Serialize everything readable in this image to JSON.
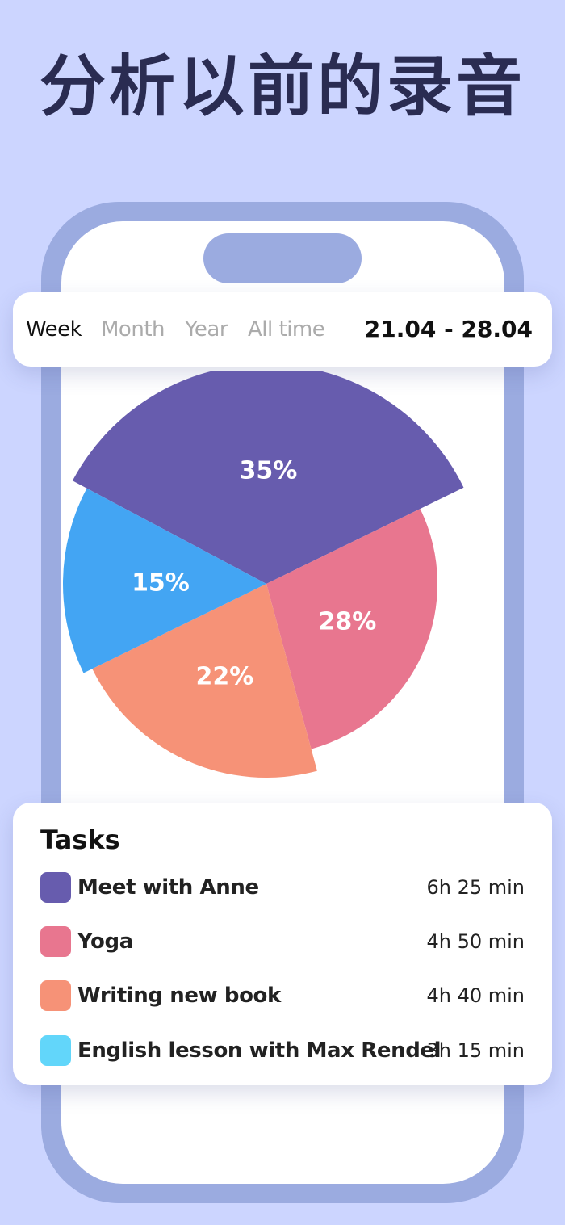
{
  "headline": "分析以前的录音",
  "period": {
    "tabs": [
      {
        "label": "Week",
        "active": true
      },
      {
        "label": "Month",
        "active": false
      },
      {
        "label": "Year",
        "active": false
      },
      {
        "label": "All time",
        "active": false
      }
    ],
    "date_range": "21.04 - 28.04"
  },
  "chart_data": {
    "type": "pie",
    "slices": [
      {
        "label": "35%",
        "value": 35,
        "color": "#675CAE"
      },
      {
        "label": "28%",
        "value": 28,
        "color": "#E8768F"
      },
      {
        "label": "22%",
        "value": 22,
        "color": "#F69277"
      },
      {
        "label": "15%",
        "value": 15,
        "color": "#43A5F3"
      }
    ]
  },
  "tasks": {
    "title": "Tasks",
    "items": [
      {
        "name": "Meet with Anne",
        "time": "6h 25 min",
        "color": "#675CAE"
      },
      {
        "name": "Yoga",
        "time": "4h 50 min",
        "color": "#E8768F"
      },
      {
        "name": "Writing new book",
        "time": "4h 40 min",
        "color": "#F69277"
      },
      {
        "name": "English lesson with Max Rendel",
        "time": "3h 15 min",
        "color": "#62D6FA"
      }
    ]
  }
}
